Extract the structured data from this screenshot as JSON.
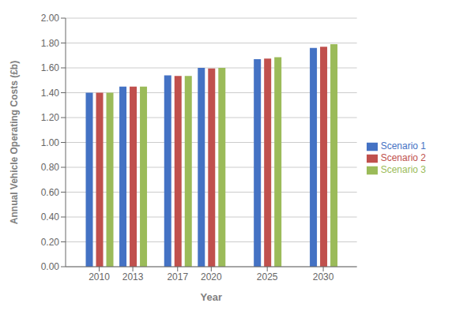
{
  "chart_data": {
    "type": "bar",
    "x": [
      2010,
      2013,
      2017,
      2020,
      2025,
      2030
    ],
    "xlim": [
      2007,
      2033
    ],
    "xticks": [
      2010,
      2013,
      2017,
      2020,
      2025,
      2030
    ],
    "xlabel": "Year",
    "ylabel": "Annual Vehicle Operating Costs (£b)",
    "ylim": [
      0.0,
      2.0
    ],
    "yticks": [
      {
        "value": 0.0,
        "label": "0.00"
      },
      {
        "value": 0.2,
        "label": "0.20"
      },
      {
        "value": 0.4,
        "label": "0.40"
      },
      {
        "value": 0.6,
        "label": "0.60"
      },
      {
        "value": 0.8,
        "label": "0.80"
      },
      {
        "value": 1.0,
        "label": "1.00"
      },
      {
        "value": 1.2,
        "label": "1.20"
      },
      {
        "value": 1.4,
        "label": "1.40"
      },
      {
        "value": 1.6,
        "label": "1.60"
      },
      {
        "value": 1.8,
        "label": "1.80"
      },
      {
        "value": 2.0,
        "label": "2.00"
      }
    ],
    "grid": true,
    "legend": "right",
    "series": [
      {
        "name": "Scenario 1",
        "color": "#4472C4",
        "values": [
          1.4,
          1.45,
          1.54,
          1.6,
          1.67,
          1.76
        ]
      },
      {
        "name": "Scenario 2",
        "color": "#C0504D",
        "values": [
          1.4,
          1.45,
          1.535,
          1.595,
          1.675,
          1.77
        ]
      },
      {
        "name": "Scenario 3",
        "color": "#9BBB59",
        "values": [
          1.4,
          1.45,
          1.535,
          1.6,
          1.685,
          1.79
        ]
      }
    ]
  }
}
